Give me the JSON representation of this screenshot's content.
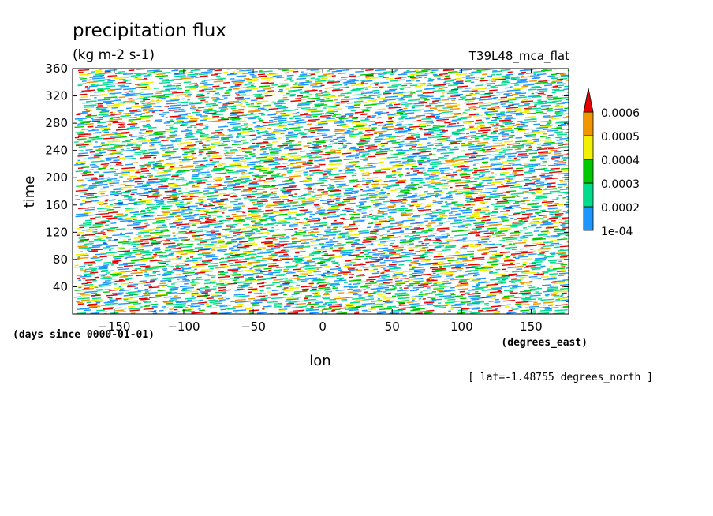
{
  "chart_data": {
    "type": "heatmap",
    "title": "precipitation flux",
    "units": "(kg m-2 s-1)",
    "run_label": "T39L48_mca_flat",
    "xlabel": "lon",
    "x_units": "(degrees_east)",
    "ylabel": "time",
    "y_units": "(days since 0000-01-01)",
    "slice_label": "[ lat=-1.48755 degrees_north ]",
    "xlim": [
      -180,
      177
    ],
    "ylim": [
      0,
      360
    ],
    "x_ticks": [
      -150,
      -100,
      -50,
      0,
      50,
      100,
      150
    ],
    "y_ticks": [
      40,
      80,
      120,
      160,
      200,
      240,
      280,
      320,
      360
    ],
    "colorbar": {
      "levels": [
        "1e-04",
        "0.0002",
        "0.0003",
        "0.0004",
        "0.0005",
        "0.0006"
      ],
      "colors": [
        "#1e96ff",
        "#00dc8c",
        "#00c800",
        "#f0f000",
        "#f09600",
        "#e60000"
      ],
      "extend": "max"
    }
  }
}
